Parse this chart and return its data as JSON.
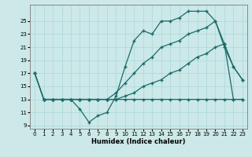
{
  "xlabel": "Humidex (Indice chaleur)",
  "bg_color": "#cce8e8",
  "grid_color": "#aad8d8",
  "line_color": "#1a6b6b",
  "xlim": [
    -0.5,
    23.5
  ],
  "ylim": [
    8.5,
    27.5
  ],
  "yticks": [
    9,
    11,
    13,
    15,
    17,
    19,
    21,
    23,
    25
  ],
  "xticks": [
    0,
    1,
    2,
    3,
    4,
    5,
    6,
    7,
    8,
    9,
    10,
    11,
    12,
    13,
    14,
    15,
    16,
    17,
    18,
    19,
    20,
    21,
    22,
    23
  ],
  "line1_x": [
    0,
    1,
    2,
    3,
    4,
    5,
    6,
    7,
    8,
    9,
    10,
    11,
    12,
    13,
    14,
    15,
    16,
    17,
    18,
    19,
    20,
    21,
    22,
    23
  ],
  "line1_y": [
    17,
    13,
    13,
    13,
    13,
    11.5,
    9.5,
    10.5,
    11,
    13.5,
    18,
    22,
    23.5,
    23,
    25,
    25,
    25.5,
    26.5,
    26.5,
    26.5,
    25,
    21.5,
    18,
    16
  ],
  "line2_x": [
    1,
    2,
    3,
    4,
    5,
    6,
    7,
    8,
    9,
    10,
    11,
    12,
    13,
    14,
    15,
    16,
    17,
    18,
    19,
    20,
    21,
    22,
    23
  ],
  "line2_y": [
    13,
    13,
    13,
    13,
    13,
    13,
    13,
    13,
    13,
    13.5,
    14,
    15,
    15.5,
    16,
    17,
    17.5,
    18.5,
    19.5,
    20,
    21,
    21.5,
    13,
    13
  ],
  "line3_x": [
    0,
    1,
    2,
    3,
    4,
    5,
    6,
    7,
    8,
    9,
    10,
    11,
    12,
    13,
    14,
    15,
    16,
    17,
    18,
    19,
    20,
    21,
    22,
    23
  ],
  "line3_y": [
    17,
    13,
    13,
    13,
    13,
    13,
    13,
    13,
    13,
    14,
    15.5,
    17,
    18.5,
    19.5,
    21,
    21.5,
    22,
    23,
    23.5,
    24,
    25,
    21,
    18,
    16
  ],
  "line4_x": [
    0,
    1,
    2,
    3,
    4,
    5,
    6,
    7,
    8,
    9,
    10,
    11,
    12,
    13,
    14,
    15,
    16,
    17,
    18,
    19,
    20,
    21,
    22,
    23
  ],
  "line4_y": [
    17,
    13,
    13,
    13,
    13,
    13,
    13,
    13,
    13,
    13,
    13,
    13,
    13,
    13,
    13,
    13,
    13,
    13,
    13,
    13,
    13,
    13,
    13,
    13
  ]
}
